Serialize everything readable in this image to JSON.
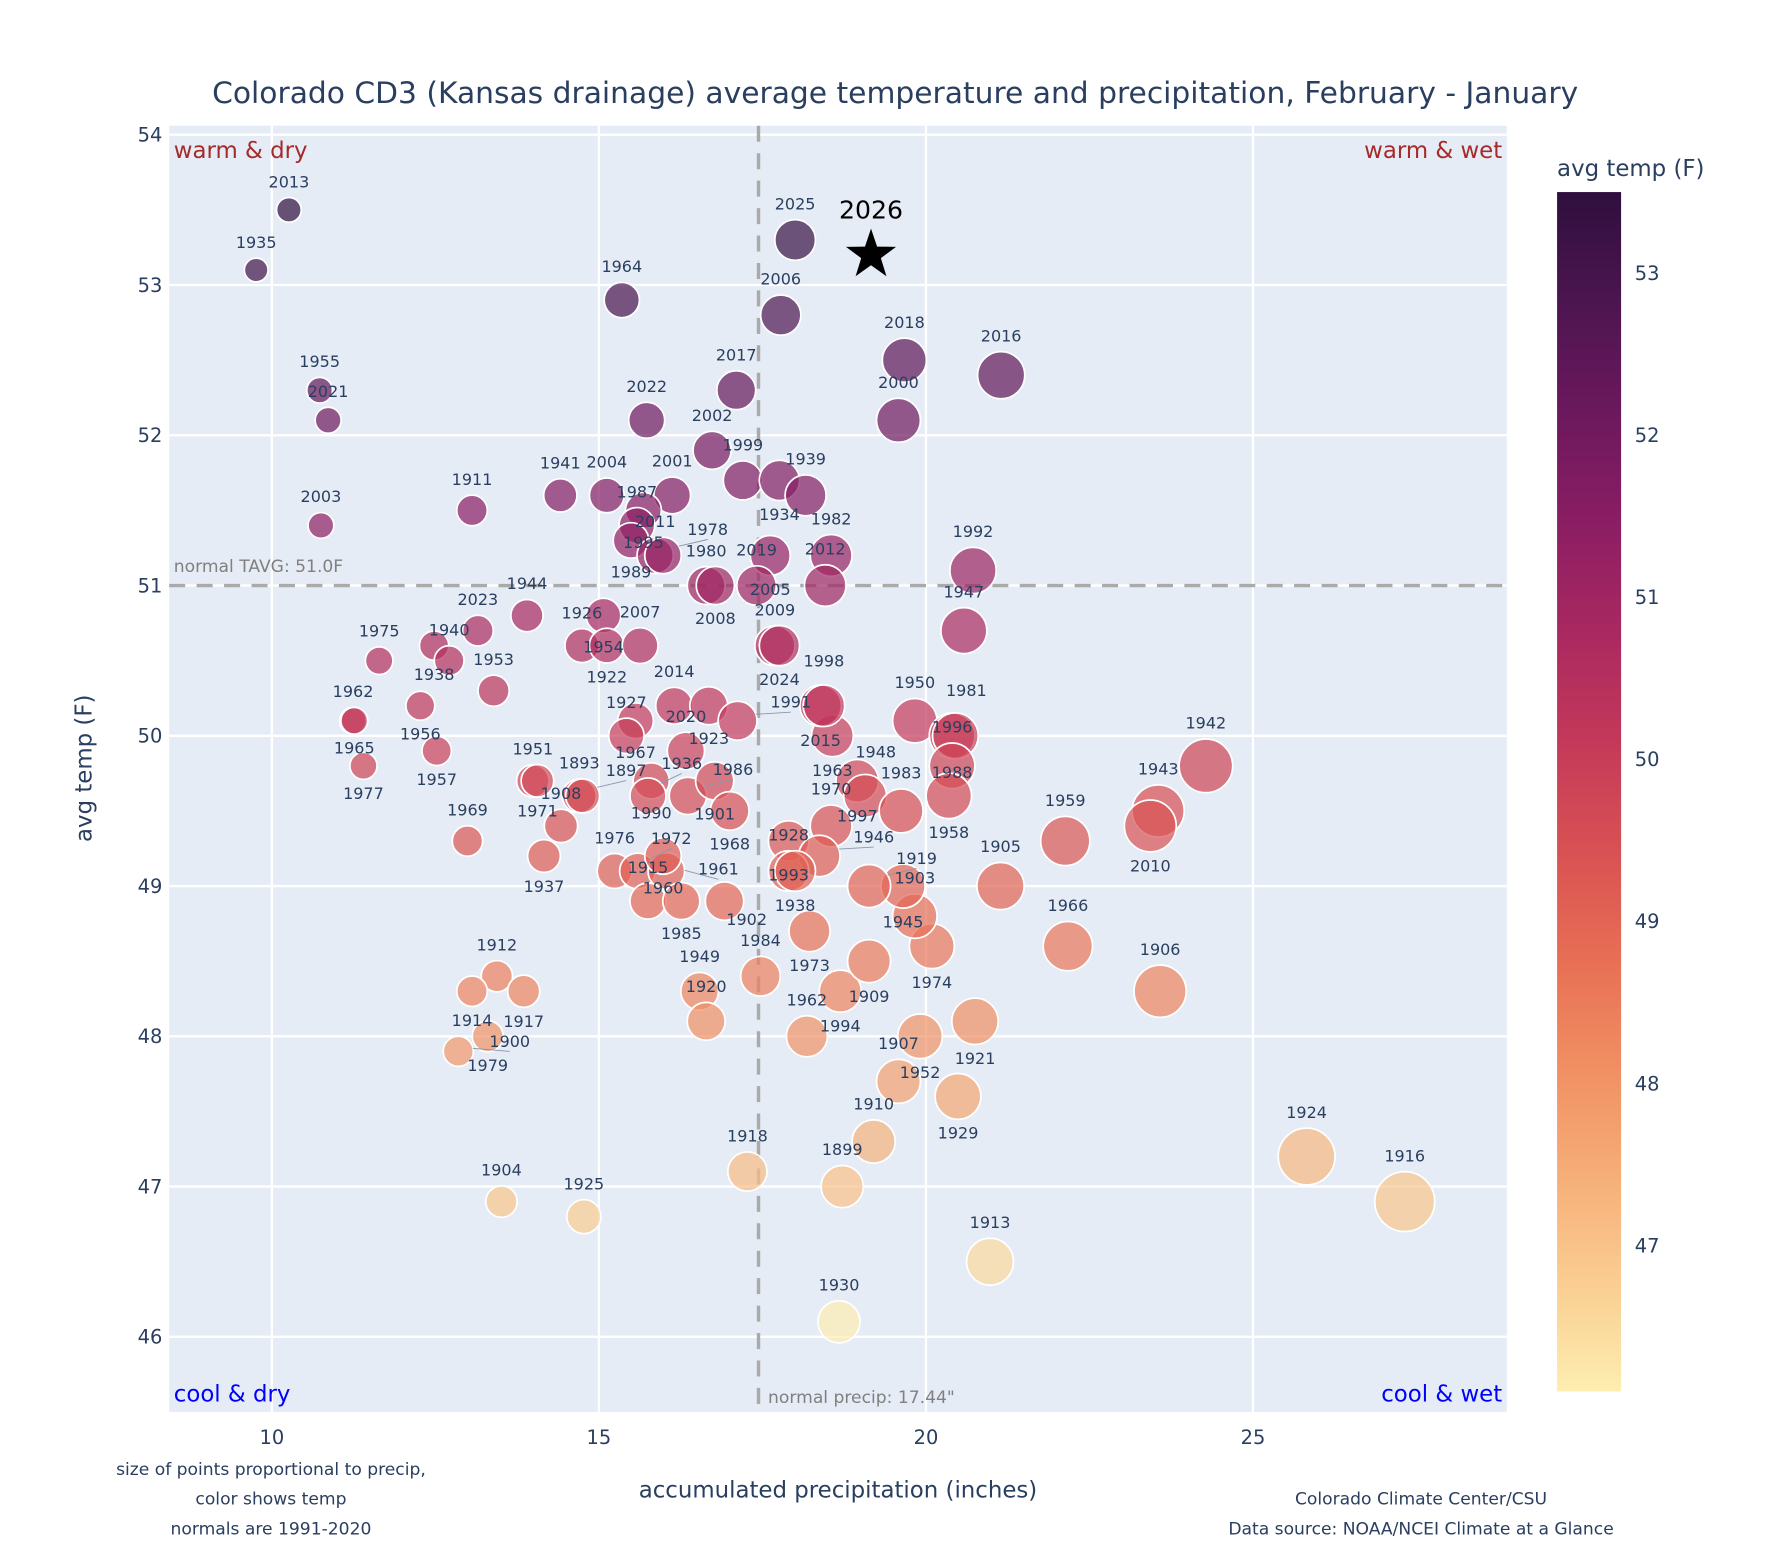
{
  "chart_data": {
    "type": "scatter",
    "title": "Colorado CD3 (Kansas drainage) average temperature and precipitation, February - January",
    "xlabel": "accumulated precipitation (inches)",
    "ylabel": "avg temp (F)",
    "xlim": [
      8.43,
      28.88
    ],
    "ylim": [
      45.5,
      54.06
    ],
    "xticks": [
      10,
      15,
      20,
      25
    ],
    "yticks": [
      46,
      47,
      48,
      49,
      50,
      51,
      52,
      53,
      54
    ],
    "grid": true,
    "colorbar": {
      "title": "avg temp (F)",
      "range": [
        46.1,
        53.5
      ],
      "ticks": [
        47,
        48,
        49,
        50,
        51,
        52,
        53
      ],
      "colors": [
        "#fdedb0",
        "#facd91",
        "#f6ad77",
        "#f08e62",
        "#e76d54",
        "#d85053",
        "#c3385a",
        "#a82860",
        "#8a1d63",
        "#6b185d",
        "#4c1550",
        "#2f0f3d"
      ]
    },
    "normal_temp": 51.0,
    "normal_temp_label": "normal TAVG: 51.0F",
    "normal_precip": 17.44,
    "normal_precip_label": "normal precip: 17.44\"",
    "quadrants": {
      "top_left": "warm & dry",
      "top_right": "warm & wet",
      "bottom_left": "cool & dry",
      "bottom_right": "cool & wet"
    },
    "quadrant_colors": {
      "warm": "#a52a2a",
      "cool": "#0000ff"
    },
    "highlight": {
      "year": "2026",
      "precip": 19.16,
      "temp": 53.2
    },
    "points": [
      [
        "2013",
        10.26,
        53.5
      ],
      [
        "1935",
        9.76,
        53.1
      ],
      [
        "1955",
        10.73,
        52.3
      ],
      [
        "2021",
        10.86,
        52.1
      ],
      [
        "2003",
        10.75,
        51.4
      ],
      [
        "1911",
        13.06,
        51.5
      ],
      [
        "1941",
        14.41,
        51.6
      ],
      [
        "2004",
        15.12,
        51.6
      ],
      [
        "2001",
        16.12,
        51.6
      ],
      [
        "1995",
        15.68,
        51.5
      ],
      [
        "1987",
        15.58,
        51.4
      ],
      [
        "1989",
        15.49,
        51.3
      ],
      [
        "2011",
        15.86,
        51.2
      ],
      [
        "1978",
        15.98,
        51.2
      ],
      [
        "1964",
        15.35,
        52.9
      ],
      [
        "2022",
        15.73,
        52.1
      ],
      [
        "2017",
        17.1,
        52.3
      ],
      [
        "2002",
        16.73,
        51.9
      ],
      [
        "1999",
        17.2,
        51.7
      ],
      [
        "1934",
        17.76,
        51.7
      ],
      [
        "1939",
        18.16,
        51.6
      ],
      [
        "2005",
        17.62,
        51.2
      ],
      [
        "1982",
        18.55,
        51.2
      ],
      [
        "2012",
        18.46,
        51.0
      ],
      [
        "1980",
        16.64,
        51.0
      ],
      [
        "2008",
        16.78,
        51.0
      ],
      [
        "2019",
        17.41,
        51.0
      ],
      [
        "2009",
        17.69,
        50.6
      ],
      [
        "2024",
        17.76,
        50.6
      ],
      [
        "2025",
        18.0,
        53.3
      ],
      [
        "2006",
        17.78,
        52.8
      ],
      [
        "2018",
        19.67,
        52.5
      ],
      [
        "2000",
        19.58,
        52.1
      ],
      [
        "2016",
        21.15,
        52.4
      ],
      [
        "1992",
        20.72,
        51.1
      ],
      [
        "1947",
        20.58,
        50.7
      ],
      [
        "1950",
        19.83,
        50.1
      ],
      [
        "1988",
        20.4,
        50.0
      ],
      [
        "1981",
        20.45,
        50.0
      ],
      [
        "1996",
        20.4,
        49.8
      ],
      [
        "1958",
        20.35,
        49.6
      ],
      [
        "1942",
        24.28,
        49.8
      ],
      [
        "1943",
        23.55,
        49.5
      ],
      [
        "2010",
        23.43,
        49.4
      ],
      [
        "1959",
        22.13,
        49.3
      ],
      [
        "1905",
        21.14,
        49.0
      ],
      [
        "1966",
        22.17,
        48.6
      ],
      [
        "1906",
        23.58,
        48.3
      ],
      [
        "1924",
        25.82,
        47.2
      ],
      [
        "1916",
        27.32,
        46.9
      ],
      [
        "1913",
        20.98,
        46.5
      ],
      [
        "1930",
        18.67,
        46.1
      ],
      [
        "1899",
        18.72,
        47.0
      ],
      [
        "1910",
        19.2,
        47.3
      ],
      [
        "1918",
        17.27,
        47.1
      ],
      [
        "1925",
        14.77,
        46.8
      ],
      [
        "1904",
        13.51,
        46.9
      ],
      [
        "1929",
        20.49,
        47.6
      ],
      [
        "1907",
        19.58,
        47.7
      ],
      [
        "1952",
        19.91,
        48.0
      ],
      [
        "1921",
        20.75,
        48.1
      ],
      [
        "1962",
        18.18,
        48.0
      ],
      [
        "1994",
        18.69,
        48.3
      ],
      [
        "1909",
        19.13,
        48.5
      ],
      [
        "1974",
        20.09,
        48.6
      ],
      [
        "1903",
        19.83,
        48.8
      ],
      [
        "1945",
        19.65,
        49.0
      ],
      [
        "1919",
        19.13,
        49.0
      ],
      [
        "1973",
        18.22,
        48.7
      ],
      [
        "1984",
        17.47,
        48.4
      ],
      [
        "1949",
        16.54,
        48.3
      ],
      [
        "1920",
        16.64,
        48.1
      ],
      [
        "1976",
        15.24,
        49.1
      ],
      [
        "1972",
        15.59,
        49.1
      ],
      [
        "1961",
        16.03,
        49.1
      ],
      [
        "1915",
        15.75,
        48.9
      ],
      [
        "1985",
        16.26,
        48.9
      ],
      [
        "1902",
        16.92,
        48.9
      ],
      [
        "1960",
        15.98,
        49.2
      ],
      [
        "1990",
        15.8,
        49.7
      ],
      [
        "1936",
        15.75,
        49.6
      ],
      [
        "1986",
        16.36,
        49.6
      ],
      [
        "1901",
        16.77,
        49.7
      ],
      [
        "1968",
        17.0,
        49.5
      ],
      [
        "1967",
        15.56,
        50.1
      ],
      [
        "1927",
        15.42,
        50.0
      ],
      [
        "2020",
        16.33,
        49.9
      ],
      [
        "2014",
        16.15,
        50.2
      ],
      [
        "1923",
        16.68,
        50.2
      ],
      [
        "1991",
        17.12,
        50.1
      ],
      [
        "1975",
        11.64,
        50.5
      ],
      [
        "1938",
        12.48,
        50.6
      ],
      [
        "1940",
        12.71,
        50.5
      ],
      [
        "2023",
        13.15,
        50.7
      ],
      [
        "1956",
        12.27,
        50.2
      ],
      [
        "1953",
        13.39,
        50.3
      ],
      [
        "1962",
        11.24,
        50.1
      ],
      [
        "1965",
        11.26,
        50.1
      ],
      [
        "1977",
        11.4,
        49.8
      ],
      [
        "1957",
        12.52,
        49.9
      ],
      [
        "1944",
        13.9,
        50.8
      ],
      [
        "1954",
        15.07,
        50.8
      ],
      [
        "1926",
        14.74,
        50.6
      ],
      [
        "1922",
        15.12,
        50.6
      ],
      [
        "2007",
        15.63,
        50.6
      ],
      [
        "1951",
        13.99,
        49.7
      ],
      [
        "1971",
        14.06,
        49.7
      ],
      [
        "1893",
        14.7,
        49.6
      ],
      [
        "1897",
        14.75,
        49.6
      ],
      [
        "1908",
        14.42,
        49.4
      ],
      [
        "1937",
        14.16,
        49.2
      ],
      [
        "1969",
        12.99,
        49.3
      ],
      [
        "1912",
        13.44,
        48.4
      ],
      [
        "1914",
        13.06,
        48.3
      ],
      [
        "1917",
        13.85,
        48.3
      ],
      [
        "1979",
        13.3,
        48.0
      ],
      [
        "1900",
        12.85,
        47.9
      ],
      [
        "1963",
        18.57,
        50.0
      ],
      [
        "2015",
        18.39,
        50.2
      ],
      [
        "1998",
        18.44,
        50.2
      ],
      [
        "1997",
        18.95,
        49.7
      ],
      [
        "1948",
        19.07,
        49.6
      ],
      [
        "1983",
        19.62,
        49.5
      ],
      [
        "1993",
        17.9,
        49.3
      ],
      [
        "1970",
        18.55,
        49.4
      ],
      [
        "1946",
        18.37,
        49.2
      ],
      [
        "1928",
        17.9,
        49.1
      ],
      [
        "1938",
        18.0,
        49.1
      ]
    ]
  },
  "footnotes": {
    "left": [
      "size of points proportional to precip,",
      "color shows temp",
      "normals are 1991-2020"
    ],
    "right": [
      "Colorado Climate Center/CSU",
      "Data source: NOAA/NCEI Climate at a Glance"
    ]
  }
}
